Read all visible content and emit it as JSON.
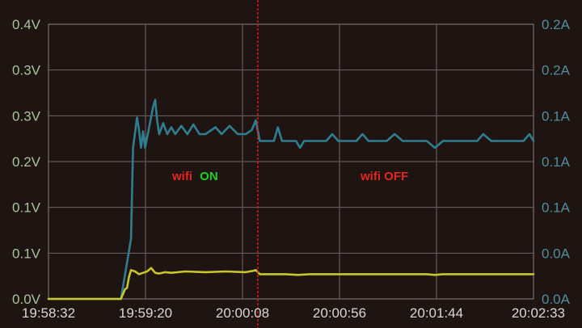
{
  "chart_data": {
    "type": "line",
    "title": "",
    "x_ticks": [
      "19:58:32",
      "19:59:20",
      "20:00:08",
      "20:00:56",
      "20:01:44",
      "20:02:33"
    ],
    "y_left_ticks": [
      "0.0V",
      "0.1V",
      "0.1V",
      "0.2V",
      "0.3V",
      "0.3V",
      "0.4V"
    ],
    "y_right_ticks": [
      "0.0A",
      "0.0A",
      "0.1A",
      "0.1A",
      "0.1A",
      "0.2A",
      "0.2A"
    ],
    "y_left_range": [
      0,
      0.4
    ],
    "y_right_range": [
      0,
      0.2
    ],
    "grid": true,
    "marker": {
      "x": "20:00:16",
      "color": "#e01b1b",
      "style": "dotted"
    },
    "annotations": [
      {
        "parts": [
          {
            "text": "wifi",
            "color": "#e8251f"
          },
          {
            "text": "ON",
            "color": "#1fd21f"
          }
        ]
      },
      {
        "parts": [
          {
            "text": "wifi OFF",
            "color": "#e8251f"
          }
        ]
      }
    ],
    "series": [
      {
        "axis": "right",
        "color": "#2f7d8f",
        "points": [
          [
            "19:58:32",
            0.0
          ],
          [
            "19:59:08",
            0.0
          ],
          [
            "19:59:12",
            0.035
          ],
          [
            "19:59:13",
            0.044
          ],
          [
            "19:59:14",
            0.11
          ],
          [
            "19:59:16",
            0.132
          ],
          [
            "19:59:17",
            0.123
          ],
          [
            "19:59:18",
            0.11
          ],
          [
            "19:59:19",
            0.122
          ],
          [
            "19:59:20",
            0.11
          ],
          [
            "19:59:22",
            0.125
          ],
          [
            "19:59:24",
            0.14
          ],
          [
            "19:59:25",
            0.145
          ],
          [
            "19:59:26",
            0.13
          ],
          [
            "19:59:27",
            0.12
          ],
          [
            "19:59:29",
            0.128
          ],
          [
            "19:59:31",
            0.12
          ],
          [
            "19:59:33",
            0.125
          ],
          [
            "19:59:35",
            0.12
          ],
          [
            "19:59:38",
            0.126
          ],
          [
            "19:59:41",
            0.12
          ],
          [
            "19:59:44",
            0.127
          ],
          [
            "19:59:47",
            0.12
          ],
          [
            "19:59:50",
            0.12
          ],
          [
            "19:59:55",
            0.125
          ],
          [
            "19:59:58",
            0.12
          ],
          [
            "20:00:02",
            0.126
          ],
          [
            "20:00:06",
            0.12
          ],
          [
            "20:00:10",
            0.12
          ],
          [
            "20:00:13",
            0.123
          ],
          [
            "20:00:15",
            0.13
          ],
          [
            "20:00:17",
            0.115
          ],
          [
            "20:00:24",
            0.115
          ],
          [
            "20:00:26",
            0.125
          ],
          [
            "20:00:28",
            0.115
          ],
          [
            "20:00:35",
            0.115
          ],
          [
            "20:00:37",
            0.11
          ],
          [
            "20:00:39",
            0.115
          ],
          [
            "20:00:50",
            0.115
          ],
          [
            "20:00:53",
            0.12
          ],
          [
            "20:00:56",
            0.115
          ],
          [
            "20:01:05",
            0.115
          ],
          [
            "20:01:08",
            0.12
          ],
          [
            "20:01:11",
            0.115
          ],
          [
            "20:01:20",
            0.115
          ],
          [
            "20:01:24",
            0.12
          ],
          [
            "20:01:28",
            0.115
          ],
          [
            "20:01:40",
            0.115
          ],
          [
            "20:01:44",
            0.11
          ],
          [
            "20:01:48",
            0.115
          ],
          [
            "20:02:05",
            0.115
          ],
          [
            "20:02:08",
            0.12
          ],
          [
            "20:02:12",
            0.115
          ],
          [
            "20:02:28",
            0.115
          ],
          [
            "20:02:31",
            0.12
          ],
          [
            "20:02:33",
            0.115
          ]
        ]
      },
      {
        "axis": "left",
        "color": "#c8c62a",
        "points": [
          [
            "19:58:32",
            0.0
          ],
          [
            "19:59:08",
            0.0
          ],
          [
            "19:59:10",
            0.014
          ],
          [
            "19:59:11",
            0.016
          ],
          [
            "19:59:12",
            0.032
          ],
          [
            "19:59:13",
            0.042
          ],
          [
            "19:59:15",
            0.04
          ],
          [
            "19:59:17",
            0.036
          ],
          [
            "19:59:19",
            0.038
          ],
          [
            "19:59:21",
            0.04
          ],
          [
            "19:59:23",
            0.045
          ],
          [
            "19:59:25",
            0.038
          ],
          [
            "19:59:27",
            0.037
          ],
          [
            "19:59:30",
            0.039
          ],
          [
            "19:59:33",
            0.038
          ],
          [
            "19:59:40",
            0.04
          ],
          [
            "19:59:50",
            0.039
          ],
          [
            "20:00:00",
            0.04
          ],
          [
            "20:00:10",
            0.039
          ],
          [
            "20:00:14",
            0.041
          ],
          [
            "20:00:15",
            0.042
          ],
          [
            "20:00:17",
            0.036
          ],
          [
            "20:00:30",
            0.036
          ],
          [
            "20:00:36",
            0.035
          ],
          [
            "20:00:42",
            0.036
          ],
          [
            "20:01:00",
            0.036
          ],
          [
            "20:01:20",
            0.036
          ],
          [
            "20:01:40",
            0.036
          ],
          [
            "20:01:44",
            0.035
          ],
          [
            "20:01:48",
            0.036
          ],
          [
            "20:02:10",
            0.036
          ],
          [
            "20:02:33",
            0.036
          ]
        ]
      }
    ]
  }
}
